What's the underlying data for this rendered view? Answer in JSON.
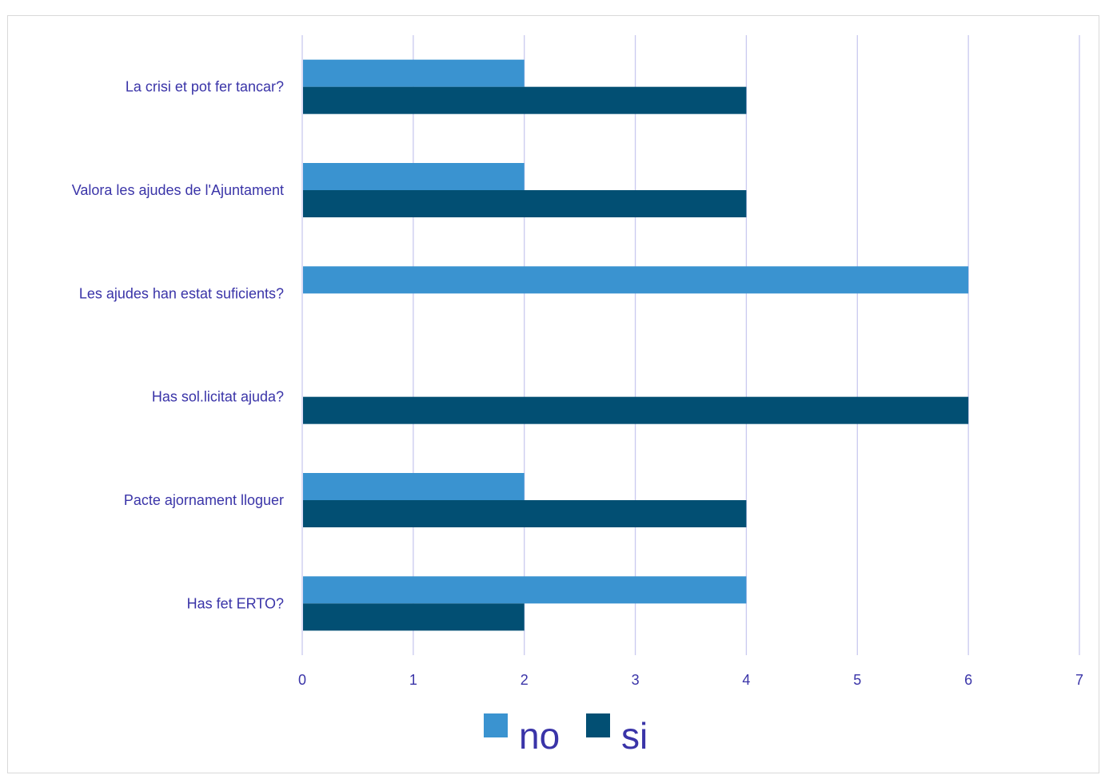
{
  "chart_data": {
    "type": "bar",
    "orientation": "horizontal",
    "title": "",
    "xlabel": "",
    "ylabel": "",
    "categories": [
      "La crisi et pot fer tancar?",
      "Valora les ajudes de l'Ajuntament",
      "Les ajudes han estat suficients?",
      "Has sol.licitat ajuda?",
      "Pacte ajornament lloguer",
      "Has fet ERTO?"
    ],
    "series": [
      {
        "name": "no",
        "color": "#3a93d0",
        "values": [
          2,
          2,
          6,
          0,
          2,
          4
        ]
      },
      {
        "name": "si",
        "color": "#024f73",
        "values": [
          4,
          4,
          0,
          6,
          4,
          2
        ]
      }
    ],
    "xlim": [
      0,
      7
    ],
    "xticks": [
      "0",
      "1",
      "2",
      "3",
      "4",
      "5",
      "6",
      "7"
    ],
    "grid": true,
    "gridlines": "vertical",
    "gridline_color": "#c9c9ef",
    "label_color": "#3a34a8",
    "legend": {
      "position": "bottom"
    }
  }
}
